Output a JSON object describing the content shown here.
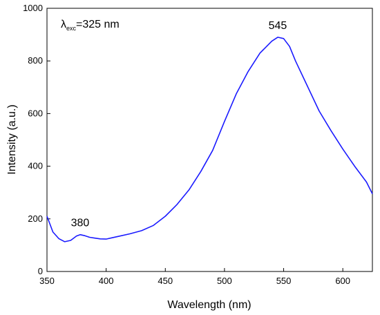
{
  "chart_data": {
    "type": "line",
    "title": "",
    "xlabel": "Wavelength (nm)",
    "ylabel": "Intensity (a.u.)",
    "xlim": [
      350,
      625
    ],
    "ylim": [
      0,
      1000
    ],
    "x_ticks": [
      350,
      400,
      450,
      500,
      550,
      600
    ],
    "y_ticks": [
      0,
      200,
      400,
      600,
      800,
      1000
    ],
    "grid": false,
    "line_color": "#1a1aff",
    "annotations": {
      "excitation": {
        "lambda": "λ",
        "sub": "exc",
        "rest": "=325 nm"
      },
      "peaks": [
        {
          "label": "380",
          "x": 378,
          "y": 140
        },
        {
          "label": "545",
          "x": 545,
          "y": 890
        }
      ]
    },
    "series": [
      {
        "x": [
          350,
          355,
          360,
          365,
          370,
          375,
          378,
          382,
          386,
          390,
          395,
          400,
          405,
          410,
          420,
          430,
          440,
          450,
          460,
          470,
          480,
          490,
          500,
          510,
          520,
          530,
          540,
          545,
          550,
          555,
          560,
          570,
          580,
          590,
          600,
          610,
          620,
          625
        ],
        "y": [
          210,
          150,
          125,
          113,
          118,
          135,
          140,
          136,
          130,
          127,
          124,
          123,
          128,
          133,
          143,
          155,
          175,
          210,
          255,
          310,
          380,
          460,
          570,
          675,
          760,
          830,
          875,
          890,
          885,
          855,
          800,
          705,
          610,
          535,
          465,
          400,
          340,
          295
        ]
      }
    ]
  }
}
